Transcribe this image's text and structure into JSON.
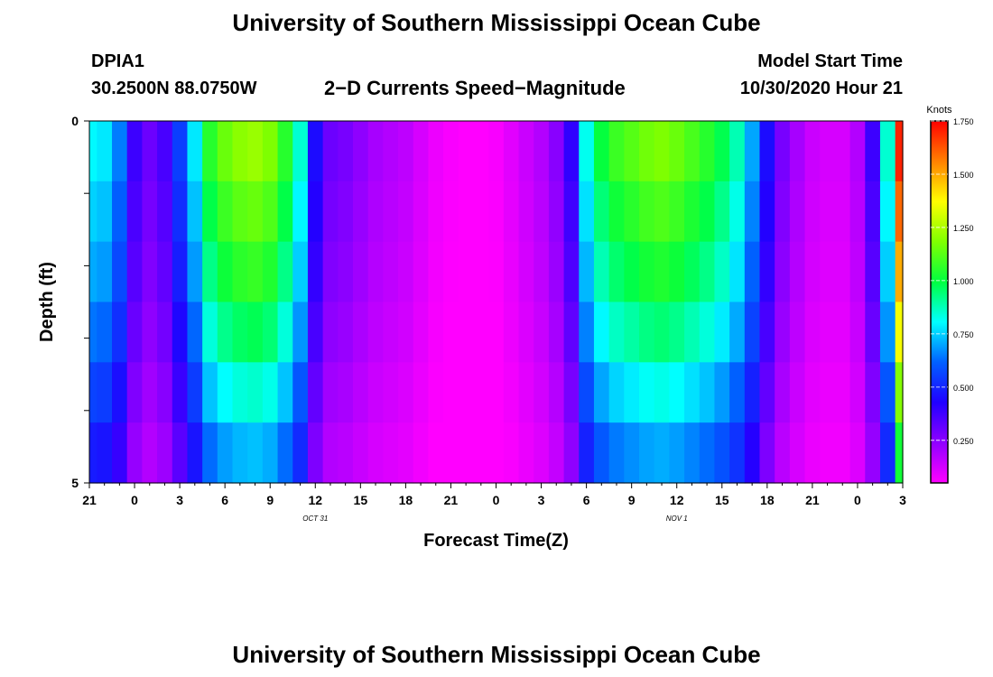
{
  "page": {
    "title_top": "University of Southern Mississippi Ocean Cube",
    "title_bottom": "University of Southern Mississippi Ocean Cube",
    "station": "DPIA1",
    "coords": "30.2500N 88.0750W",
    "subtitle": "2−D Currents Speed−Magnitude",
    "start_label": "Model Start Time",
    "start_value": "10/30/2020 Hour 21"
  },
  "chart_data": {
    "type": "heatmap",
    "title": "2−D Currents Speed−Magnitude",
    "xlabel": "Forecast Time(Z)",
    "ylabel": "Depth (ft)",
    "x_hours": [
      0,
      1,
      2,
      3,
      4,
      5,
      6,
      7,
      8,
      9,
      10,
      11,
      12,
      13,
      14,
      15,
      16,
      17,
      18,
      19,
      20,
      21,
      22,
      23,
      24,
      25,
      26,
      27,
      28,
      29,
      30,
      31,
      32,
      33,
      34,
      35,
      36,
      37,
      38,
      39,
      40,
      41,
      42,
      43,
      44,
      45,
      46,
      47,
      48,
      49,
      50,
      51,
      52,
      53,
      54
    ],
    "x_tick_labels": [
      "21",
      "0",
      "3",
      "6",
      "9",
      "12",
      "15",
      "18",
      "21",
      "0",
      "3",
      "6",
      "9",
      "12",
      "15",
      "18",
      "21",
      "0",
      "3"
    ],
    "date_labels": [
      {
        "text": "OCT 31",
        "hour": 15
      },
      {
        "text": "NOV 1",
        "hour": 39
      }
    ],
    "y_range": [
      0,
      5
    ],
    "y_tick_labels": [
      "0",
      "5"
    ],
    "depth_layers": 6,
    "profile": [
      0.8,
      0.78,
      0.65,
      0.38,
      0.3,
      0.36,
      0.55,
      0.78,
      1.05,
      1.15,
      1.2,
      1.22,
      1.18,
      1.05,
      0.85,
      0.45,
      0.3,
      0.28,
      0.24,
      0.2,
      0.18,
      0.16,
      0.12,
      0.08,
      0.06,
      0.05,
      0.04,
      0.06,
      0.1,
      0.14,
      0.18,
      0.25,
      0.4,
      0.82,
      1.0,
      1.08,
      1.12,
      1.16,
      1.18,
      1.15,
      1.1,
      1.05,
      0.98,
      0.88,
      0.7,
      0.45,
      0.28,
      0.2,
      0.14,
      0.12,
      0.12,
      0.18,
      0.38,
      0.85,
      1.7
    ],
    "layer_factors": [
      1.0,
      0.94,
      0.88,
      0.8,
      0.7,
      0.6
    ],
    "colorbar": {
      "label": "Knots",
      "range": [
        0.05,
        1.75
      ],
      "ticks": [
        "1.750",
        "1.500",
        "1.250",
        "1.000",
        "0.750",
        "0.500",
        "0.250"
      ],
      "tick_values": [
        1.75,
        1.5,
        1.25,
        1.0,
        0.75,
        0.5,
        0.25
      ],
      "colors": [
        "#ff00ff",
        "#9000ff",
        "#2000ff",
        "#0060ff",
        "#00ffff",
        "#00ff40",
        "#80ff00",
        "#ffff00",
        "#ff8000",
        "#ff0000"
      ]
    }
  }
}
